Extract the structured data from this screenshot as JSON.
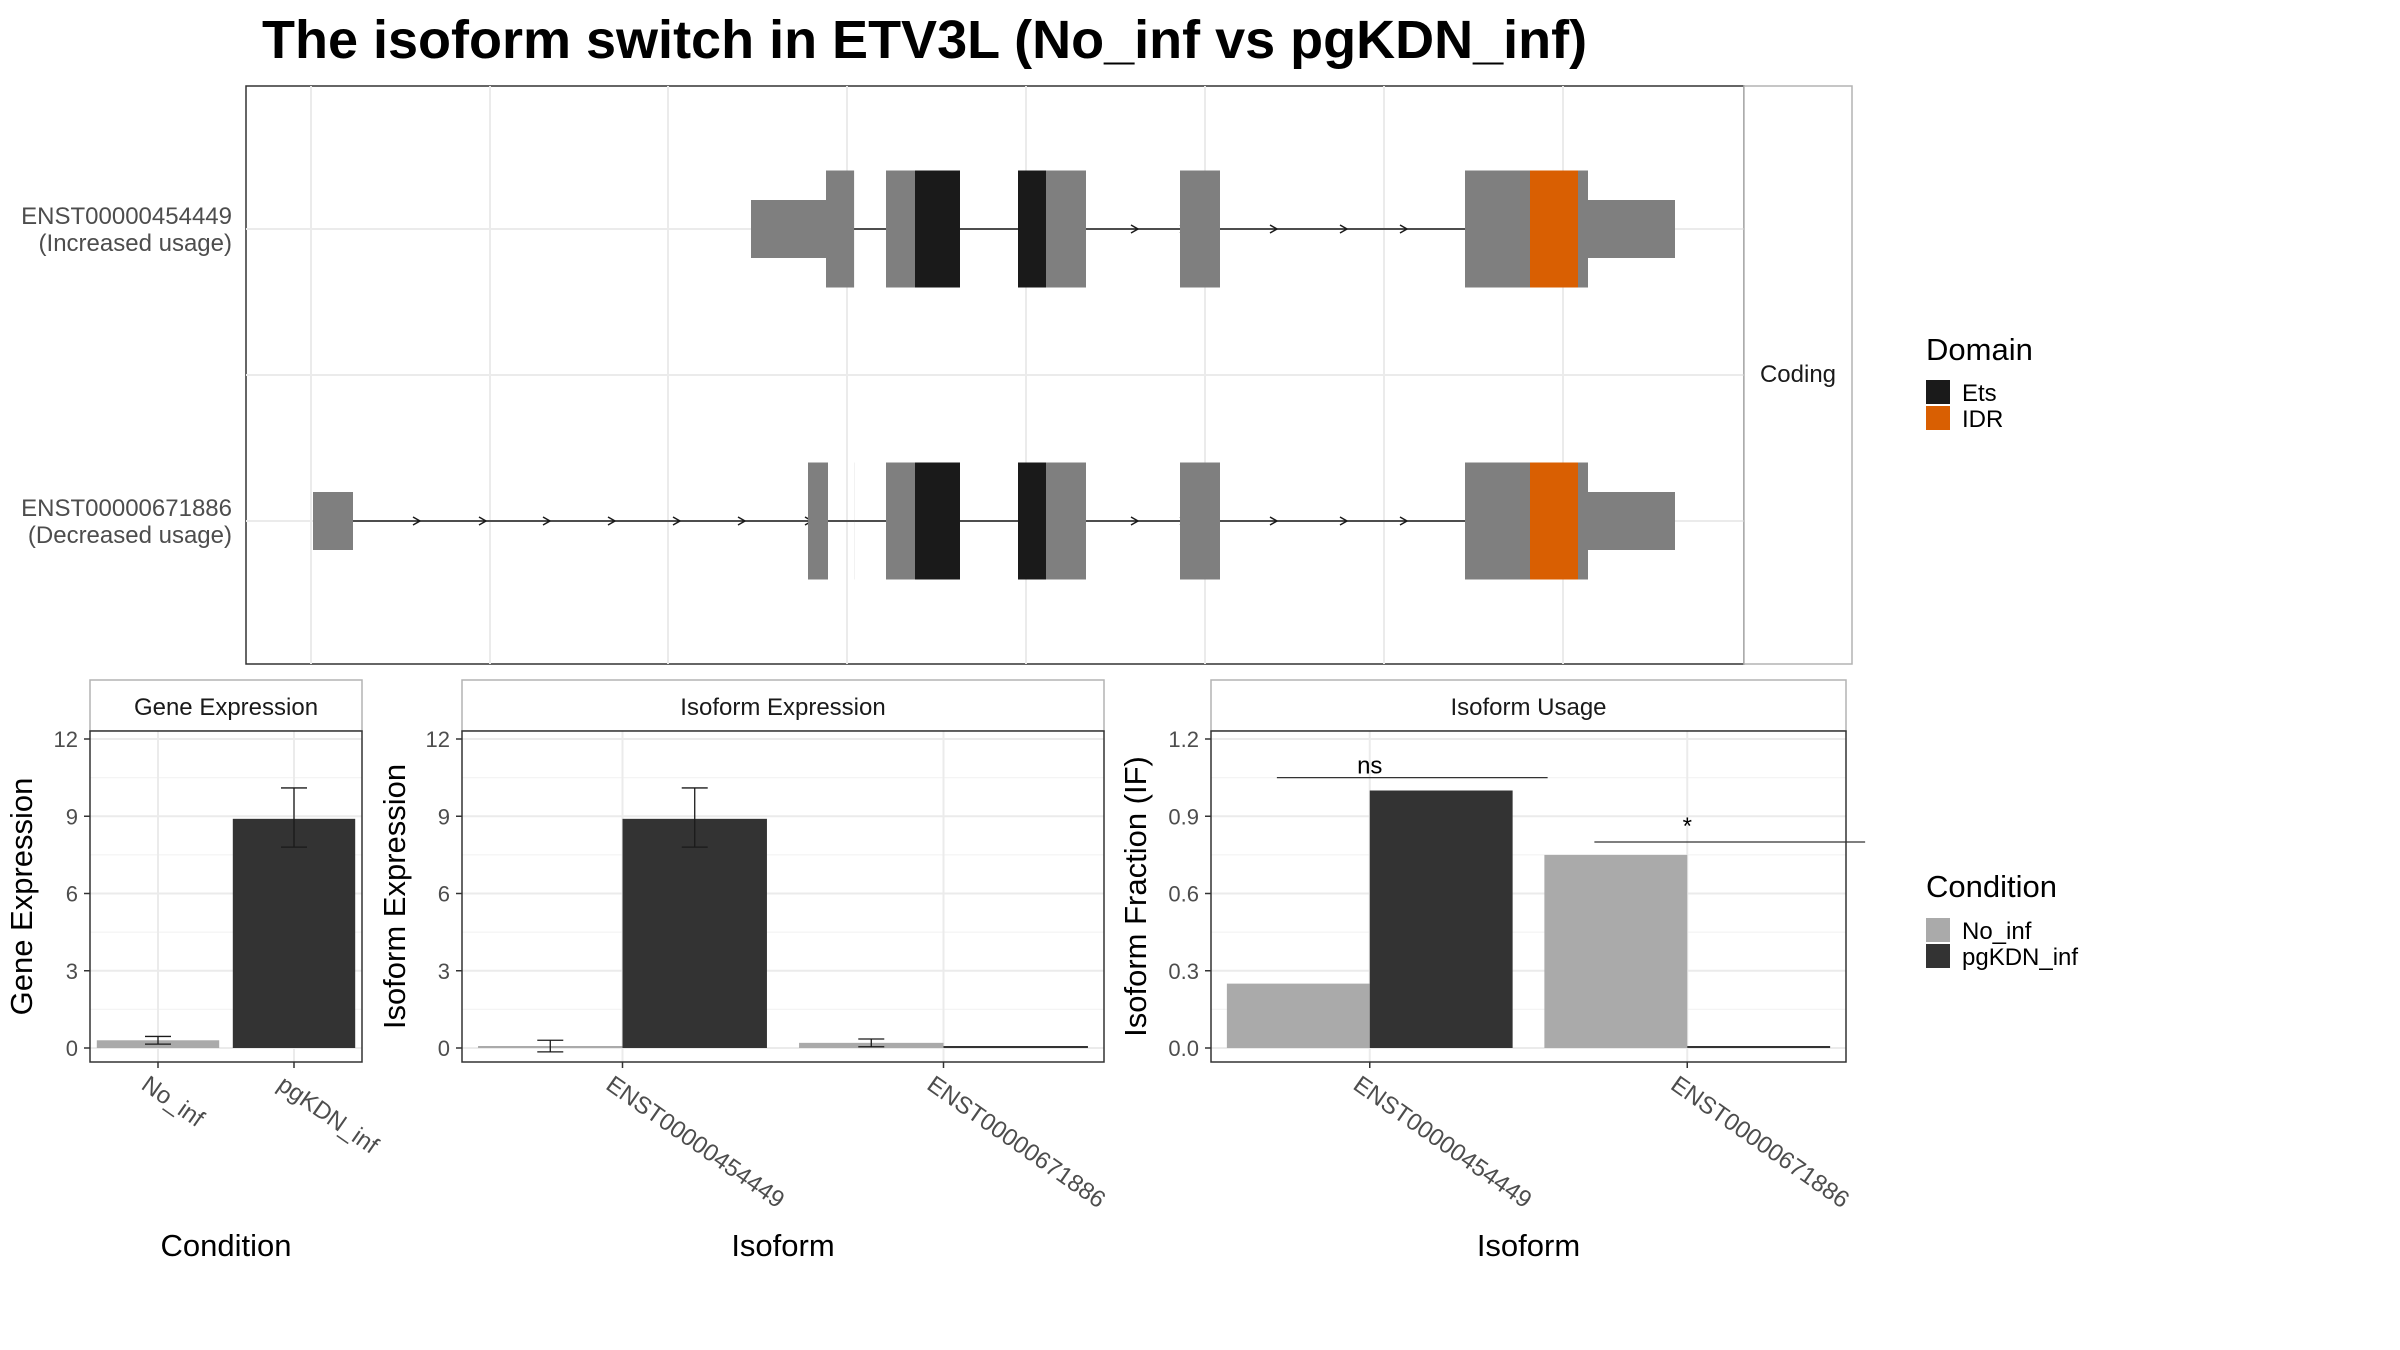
{
  "title": "The isoform switch in ETV3L (No_inf vs pgKDN_inf)",
  "colors": {
    "background": "#ffffff",
    "panel_border": "#333333",
    "strip_border": "#b3b3b3",
    "grid": "#ebebeb",
    "exon": "#7f7f7f",
    "Ets": "#1a1a1a",
    "IDR": "#d95f02",
    "No_inf": "#aaaaaa",
    "pgKDN_inf": "#333333"
  },
  "legends": {
    "domain": {
      "title": "Domain",
      "items": [
        {
          "label": "Ets",
          "color": "#1a1a1a"
        },
        {
          "label": "IDR",
          "color": "#d95f02"
        }
      ]
    },
    "condition": {
      "title": "Condition",
      "items": [
        {
          "label": "No_inf",
          "color": "#aaaaaa"
        },
        {
          "label": "pgKDN_inf",
          "color": "#333333"
        }
      ]
    }
  },
  "chart_data": [
    {
      "type": "gene_structure",
      "facet_label": "Coding",
      "transcripts": [
        {
          "id": "ENST00000454449",
          "label": "ENST00000454449",
          "sublabel": "(Increased usage)"
        },
        {
          "id": "ENST00000671886",
          "label": "ENST00000671886",
          "sublabel": "(Decreased usage)"
        }
      ],
      "domain_types": [
        "Ets",
        "IDR"
      ],
      "grid": true
    },
    {
      "type": "bar",
      "facet_label": "Gene Expression",
      "categories": [
        "No_inf",
        "pgKDN_inf"
      ],
      "values": [
        0.3,
        8.9
      ],
      "error_low": [
        0.15,
        7.8
      ],
      "error_high": [
        0.45,
        10.1
      ],
      "fill_by_category": [
        "No_inf",
        "pgKDN_inf"
      ],
      "xlabel": "Condition",
      "ylabel": "Gene Expression",
      "ylim": [
        0,
        12
      ],
      "yticks": [
        0,
        3,
        6,
        9,
        12
      ],
      "grid": true
    },
    {
      "type": "bar",
      "facet_label": "Isoform Expression",
      "categories": [
        "ENST00000454449",
        "ENST00000671886"
      ],
      "series": [
        {
          "name": "No_inf",
          "values": [
            0.05,
            0.2
          ],
          "error_low": [
            -0.15,
            0.05
          ],
          "error_high": [
            0.3,
            0.35
          ]
        },
        {
          "name": "pgKDN_inf",
          "values": [
            8.9,
            0.0
          ],
          "error_low": [
            7.8,
            0.0
          ],
          "error_high": [
            10.1,
            0.0
          ]
        }
      ],
      "xlabel": "Isoform",
      "ylabel": "Isoform Expression",
      "ylim": [
        0,
        12
      ],
      "yticks": [
        0,
        3,
        6,
        9,
        12
      ],
      "grid": true
    },
    {
      "type": "bar",
      "facet_label": "Isoform Usage",
      "categories": [
        "ENST00000454449",
        "ENST00000671886"
      ],
      "series": [
        {
          "name": "No_inf",
          "values": [
            0.25,
            0.75
          ]
        },
        {
          "name": "pgKDN_inf",
          "values": [
            1.0,
            0.0
          ]
        }
      ],
      "annotations": [
        {
          "category": "ENST00000454449",
          "text": "ns",
          "y": 1.05
        },
        {
          "category": "ENST00000671886",
          "text": "*",
          "y": 0.8
        }
      ],
      "xlabel": "Isoform",
      "ylabel": "Isoform Fraction (IF)",
      "ylim": [
        0,
        1.2
      ],
      "yticks": [
        "0.0",
        "0.3",
        "0.6",
        "0.9",
        "1.2"
      ],
      "grid": true
    }
  ]
}
